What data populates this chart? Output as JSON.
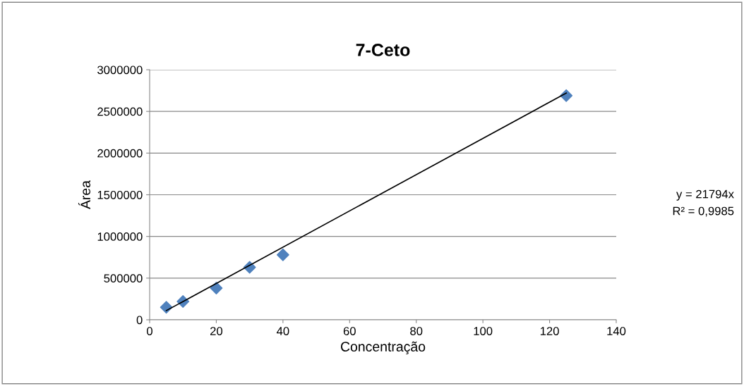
{
  "chart_data": {
    "type": "scatter",
    "title": "7-Ceto",
    "xlabel": "Concentração",
    "ylabel": "Área",
    "series": [
      {
        "color": "#4f81bd",
        "marker": "diamond",
        "x": [
          5,
          10,
          20,
          30,
          40,
          125
        ],
        "values": [
          150000,
          220000,
          380000,
          630000,
          780000,
          2690000
        ]
      },
      {
        "type": "line",
        "color": "#000000",
        "marker": "none",
        "x": [
          5,
          125
        ],
        "values": [
          110000,
          2720000
        ]
      }
    ],
    "xlim": [
      0,
      140
    ],
    "xticks": [
      0,
      20,
      40,
      60,
      80,
      100,
      120,
      140
    ],
    "ylim": [
      0,
      3000000
    ],
    "yticks": [
      0,
      500000,
      1000000,
      1500000,
      2000000,
      2500000,
      3000000
    ],
    "grid": "y",
    "legend": false,
    "annotations": [
      "y = 21794x",
      "R² = 0,9985"
    ]
  }
}
